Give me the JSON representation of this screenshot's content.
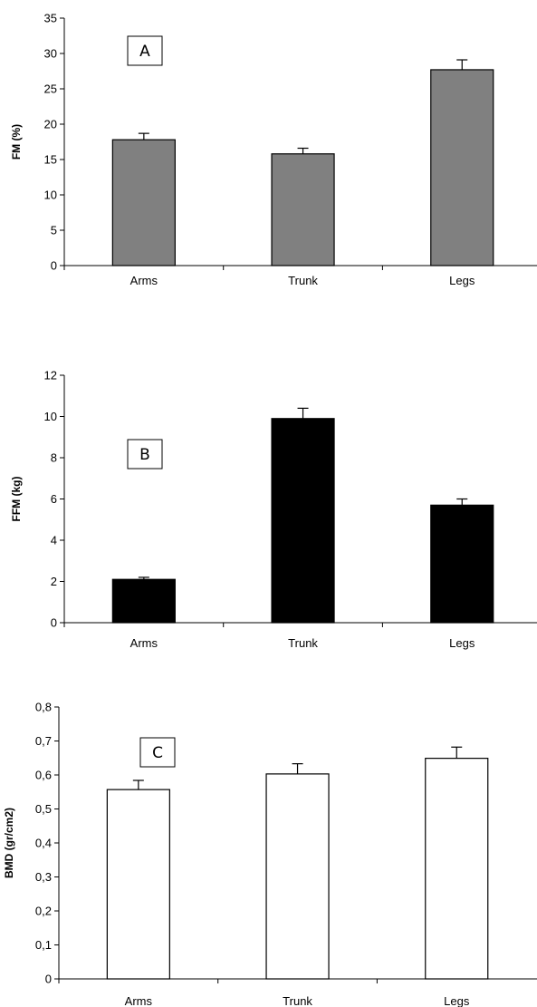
{
  "chart_data": [
    {
      "type": "bar",
      "panel_label": "A",
      "ylabel": "FM (%)",
      "categories": [
        "Arms",
        "Trunk",
        "Legs"
      ],
      "values": [
        17.8,
        15.8,
        27.7
      ],
      "errors": [
        0.9,
        0.8,
        1.4
      ],
      "ylim": [
        0,
        35
      ],
      "yticks": [
        0,
        5,
        10,
        15,
        20,
        25,
        30,
        35
      ],
      "ytick_labels": [
        "0",
        "5",
        "10",
        "15",
        "20",
        "25",
        "30",
        "35"
      ],
      "bar_color": "#808080"
    },
    {
      "type": "bar",
      "panel_label": "B",
      "ylabel": "FFM (kg)",
      "categories": [
        "Arms",
        "Trunk",
        "Legs"
      ],
      "values": [
        2.1,
        9.9,
        5.7
      ],
      "errors": [
        0.1,
        0.5,
        0.3
      ],
      "ylim": [
        0,
        12
      ],
      "yticks": [
        0,
        2,
        4,
        6,
        8,
        10,
        12
      ],
      "ytick_labels": [
        "0",
        "2",
        "4",
        "6",
        "8",
        "10",
        "12"
      ],
      "bar_color": "#000000"
    },
    {
      "type": "bar",
      "panel_label": "C",
      "ylabel": "BMD (gr/cm2)",
      "categories": [
        "Arms",
        "Trunk",
        "Legs"
      ],
      "values": [
        0.557,
        0.603,
        0.649
      ],
      "errors": [
        0.027,
        0.03,
        0.033
      ],
      "ylim": [
        0,
        0.8
      ],
      "yticks": [
        0,
        0.1,
        0.2,
        0.3,
        0.4,
        0.5,
        0.6,
        0.7,
        0.8
      ],
      "ytick_labels": [
        "0",
        "0,1",
        "0,2",
        "0,3",
        "0,4",
        "0,5",
        "0,6",
        "0,7",
        "0,8"
      ],
      "bar_color": "#ffffff"
    }
  ]
}
